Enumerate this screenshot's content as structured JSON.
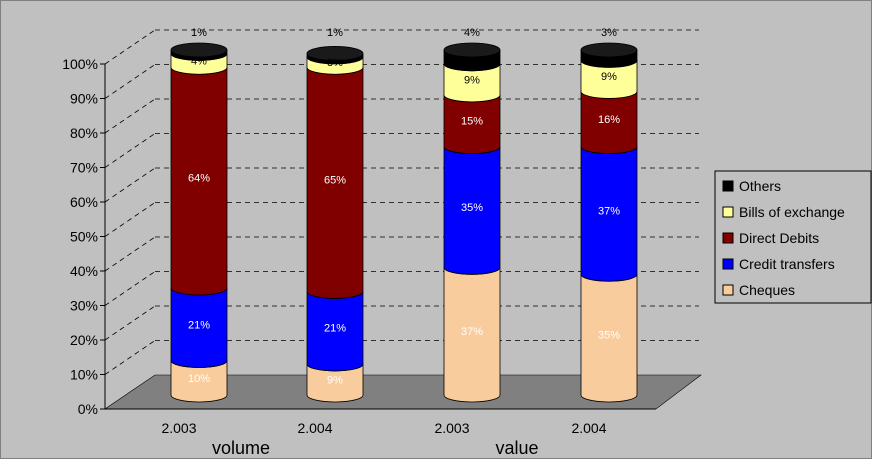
{
  "chart_data": {
    "type": "bar",
    "stacked": true,
    "percent": true,
    "three_d": true,
    "categories": [
      "2.003",
      "2.004",
      "2.003",
      "2.004"
    ],
    "groups": [
      {
        "label": "volume",
        "categories": [
          "2.003",
          "2.004"
        ]
      },
      {
        "label": "value",
        "categories": [
          "2.003",
          "2.004"
        ]
      }
    ],
    "series": [
      {
        "name": "Cheques",
        "values": [
          10,
          9,
          37,
          35
        ],
        "labels": [
          "10%",
          "9%",
          "37%",
          "35%"
        ],
        "color": "#f9cc9d"
      },
      {
        "name": "Credit transfers",
        "values": [
          21,
          21,
          35,
          37
        ],
        "labels": [
          "21%",
          "21%",
          "35%",
          "37%"
        ],
        "color": "#0000ff"
      },
      {
        "name": "Direct Debits",
        "values": [
          64,
          65,
          15,
          16
        ],
        "labels": [
          "64%",
          "65%",
          "15%",
          "16%"
        ],
        "color": "#800000"
      },
      {
        "name": "Bills of exchange",
        "values": [
          4,
          3,
          9,
          9
        ],
        "labels": [
          "4%",
          "3%",
          "9%",
          "9%"
        ],
        "color": "#ffff99"
      },
      {
        "name": "Others",
        "values": [
          1,
          1,
          4,
          3
        ],
        "labels": [
          "1%",
          "1%",
          "4%",
          "3%"
        ],
        "color": "#000000"
      }
    ],
    "ylim": [
      0,
      100
    ],
    "yticks": [
      "0%",
      "10%",
      "20%",
      "30%",
      "40%",
      "50%",
      "60%",
      "70%",
      "80%",
      "90%",
      "100%"
    ],
    "grid": true,
    "legend": {
      "position": "right",
      "entries": [
        "Others",
        "Bills of exchange",
        "Direct Debits",
        "Credit transfers",
        "Cheques"
      ]
    }
  }
}
